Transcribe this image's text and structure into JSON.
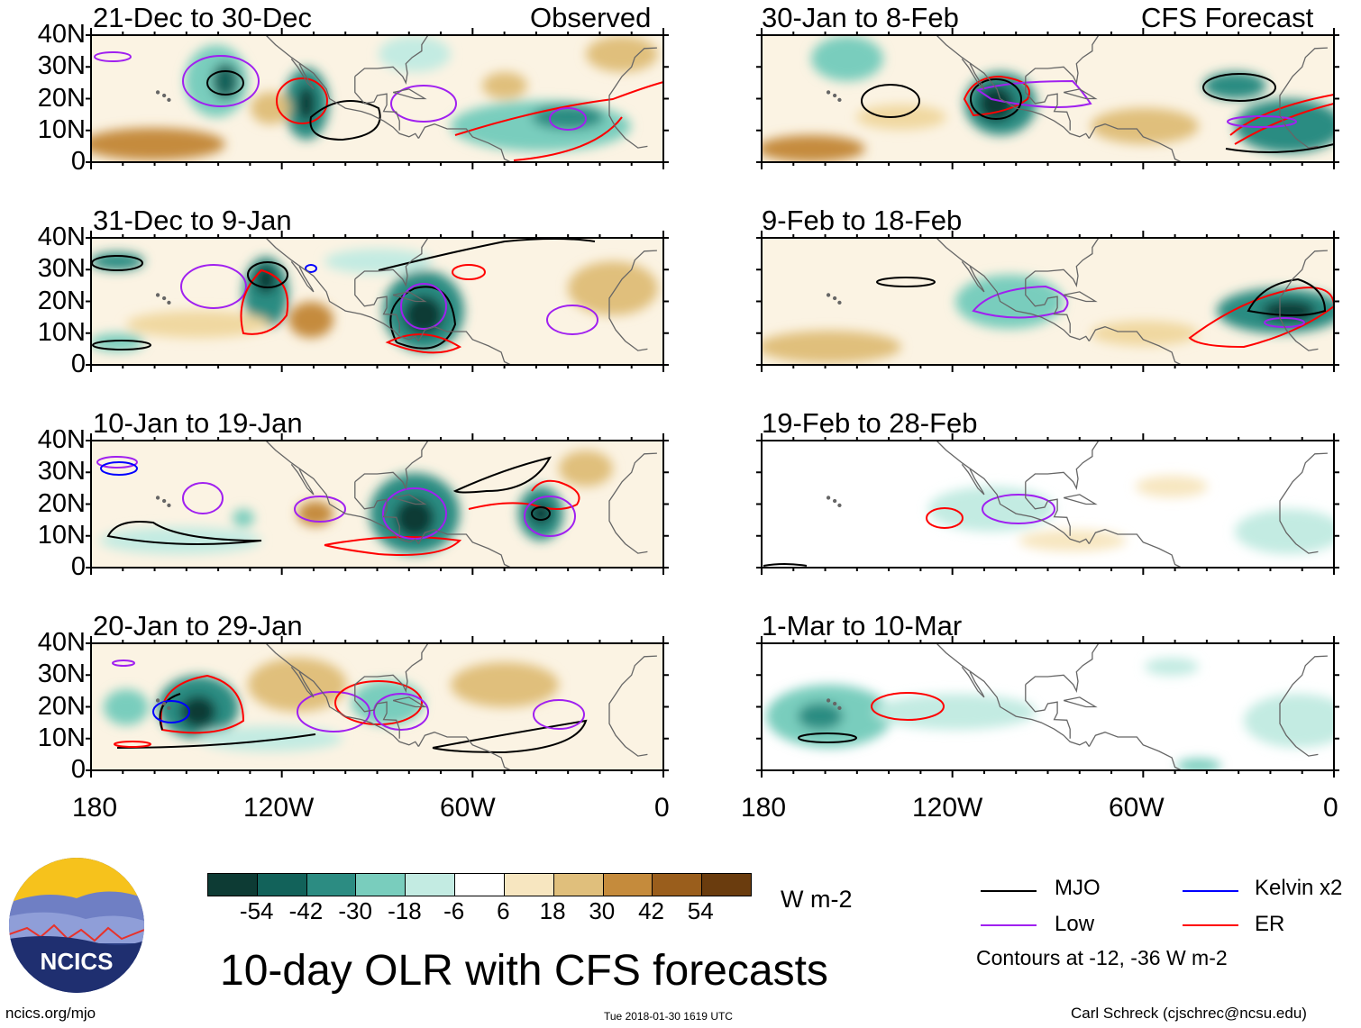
{
  "figure_title": "10-day OLR with CFS forecasts",
  "observed_label": "Observed",
  "forecast_label": "CFS Forecast",
  "panels_left": [
    {
      "period": "21-Dec to 30-Dec"
    },
    {
      "period": "31-Dec to 9-Jan"
    },
    {
      "period": "10-Jan to 19-Jan"
    },
    {
      "period": "20-Jan to 29-Jan"
    }
  ],
  "panels_right": [
    {
      "period": "30-Jan to 8-Feb"
    },
    {
      "period": "9-Feb to 18-Feb"
    },
    {
      "period": "19-Feb to 28-Feb"
    },
    {
      "period": "1-Mar to 10-Mar"
    }
  ],
  "lat_labels": [
    "40N",
    "30N",
    "20N",
    "10N",
    "0"
  ],
  "lon_labels": [
    "180",
    "120W",
    "60W",
    "0"
  ],
  "colorbar": {
    "colors": [
      "#0d3b34",
      "#12625a",
      "#2c8c82",
      "#79cdbd",
      "#c3ebe2",
      "#ffffff",
      "#f7e6c0",
      "#e0bf7c",
      "#c58b3c",
      "#9a5e1c",
      "#6a3c0e"
    ],
    "labels": [
      "-54",
      "-42",
      "-30",
      "-18",
      "-6",
      "6",
      "18",
      "30",
      "42",
      "54"
    ],
    "units": "W m-2"
  },
  "legend": {
    "items": [
      {
        "label": "MJO",
        "color": "#000000"
      },
      {
        "label": "Kelvin x2",
        "color": "#0000ff"
      },
      {
        "label": "Low",
        "color": "#a020f0"
      },
      {
        "label": "ER",
        "color": "#ff0000"
      }
    ],
    "note": "Contours at -12, -36 W m-2"
  },
  "logo_text": "NCICS",
  "website": "ncics.org/mjo",
  "timestamp": "Tue 2018-01-30 1619 UTC",
  "credit": "Carl Schreck (cjschrec@ncsu.edu)"
}
